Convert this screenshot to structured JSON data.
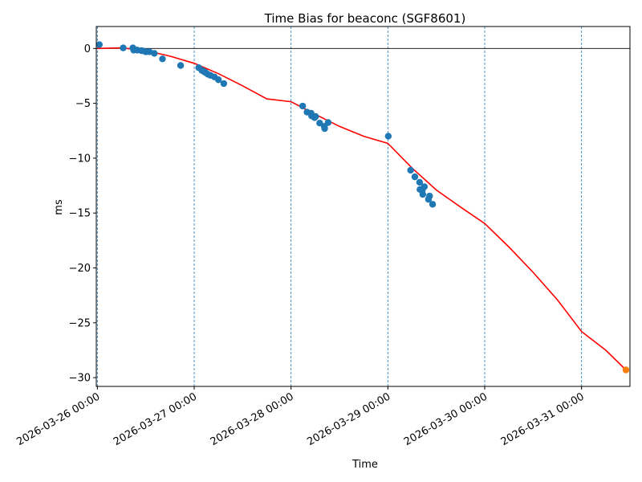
{
  "chart_data": {
    "type": "scatter",
    "title": "Time Bias for beaconc (SGF8601)",
    "xlabel": "Time",
    "ylabel": "ms",
    "x_is_datetime": true,
    "xlim": [
      "2026-03-25T23:44:00",
      "2026-03-31T12:00:00"
    ],
    "ylim": [
      -30.8,
      2.0
    ],
    "grid": false,
    "zero_line": true,
    "vertical_day_lines": true,
    "colors": {
      "points": "#1f77b4",
      "highlight": "#ff7f0e",
      "fit": "#ff0000",
      "day_lines": "#1f77b4",
      "zero_line": "#000000"
    },
    "x_ticks": [
      {
        "value": "2026-03-26T00:00:00",
        "label": "2026-03-26 00:00"
      },
      {
        "value": "2026-03-27T00:00:00",
        "label": "2026-03-27 00:00"
      },
      {
        "value": "2026-03-28T00:00:00",
        "label": "2026-03-28 00:00"
      },
      {
        "value": "2026-03-29T00:00:00",
        "label": "2026-03-29 00:00"
      },
      {
        "value": "2026-03-30T00:00:00",
        "label": "2026-03-30 00:00"
      },
      {
        "value": "2026-03-31T00:00:00",
        "label": "2026-03-31 00:00"
      }
    ],
    "y_ticks": [
      {
        "value": 0,
        "label": "0"
      },
      {
        "value": -5,
        "label": "−5"
      },
      {
        "value": -10,
        "label": "−10"
      },
      {
        "value": -15,
        "label": "−15"
      },
      {
        "value": -20,
        "label": "−20"
      },
      {
        "value": -25,
        "label": "−25"
      },
      {
        "value": -30,
        "label": "−30"
      }
    ],
    "series": [
      {
        "kind": "points",
        "color": "#1f77b4",
        "points": [
          {
            "x": "2026-03-26T00:29:00",
            "y": 0.35
          },
          {
            "x": "2026-03-26T06:24:00",
            "y": 0.05
          },
          {
            "x": "2026-03-26T08:48:00",
            "y": 0.05
          },
          {
            "x": "2026-03-26T09:00:00",
            "y": -0.15
          },
          {
            "x": "2026-03-26T09:53:00",
            "y": -0.15
          },
          {
            "x": "2026-03-26T10:53:00",
            "y": -0.2
          },
          {
            "x": "2026-03-26T11:05:00",
            "y": -0.2
          },
          {
            "x": "2026-03-26T11:56:00",
            "y": -0.3
          },
          {
            "x": "2026-03-26T12:05:00",
            "y": -0.3
          },
          {
            "x": "2026-03-26T12:54:00",
            "y": -0.3
          },
          {
            "x": "2026-03-26T14:07:00",
            "y": -0.45
          },
          {
            "x": "2026-03-26T16:08:00",
            "y": -0.95
          },
          {
            "x": "2026-03-26T20:38:00",
            "y": -1.55
          },
          {
            "x": "2026-03-27T01:07:00",
            "y": -1.75
          },
          {
            "x": "2026-03-27T01:53:00",
            "y": -2.0
          },
          {
            "x": "2026-03-27T02:24:00",
            "y": -2.1
          },
          {
            "x": "2026-03-27T02:49:00",
            "y": -2.2
          },
          {
            "x": "2026-03-27T03:24:00",
            "y": -2.35
          },
          {
            "x": "2026-03-27T04:02:00",
            "y": -2.45
          },
          {
            "x": "2026-03-27T05:02:00",
            "y": -2.6
          },
          {
            "x": "2026-03-27T06:00:00",
            "y": -2.85
          },
          {
            "x": "2026-03-27T07:20:00",
            "y": -3.2
          },
          {
            "x": "2026-03-28T02:53:00",
            "y": -5.25
          },
          {
            "x": "2026-03-28T03:58:00",
            "y": -5.8
          },
          {
            "x": "2026-03-28T04:58:00",
            "y": -5.9
          },
          {
            "x": "2026-03-28T05:06:00",
            "y": -6.15
          },
          {
            "x": "2026-03-28T05:50:00",
            "y": -6.3
          },
          {
            "x": "2026-03-28T06:05:00",
            "y": -6.2
          },
          {
            "x": "2026-03-28T07:06:00",
            "y": -6.8
          },
          {
            "x": "2026-03-28T08:15:00",
            "y": -7.1
          },
          {
            "x": "2026-03-28T08:20:00",
            "y": -7.3
          },
          {
            "x": "2026-03-28T09:12:00",
            "y": -6.75
          },
          {
            "x": "2026-03-29T00:06:00",
            "y": -8.0
          },
          {
            "x": "2026-03-29T05:38:00",
            "y": -11.1
          },
          {
            "x": "2026-03-29T06:41:00",
            "y": -11.7
          },
          {
            "x": "2026-03-29T07:52:00",
            "y": -12.2
          },
          {
            "x": "2026-03-29T07:57:00",
            "y": -12.85
          },
          {
            "x": "2026-03-29T08:32:00",
            "y": -12.95
          },
          {
            "x": "2026-03-29T08:39:00",
            "y": -13.3
          },
          {
            "x": "2026-03-29T09:03:00",
            "y": -12.6
          },
          {
            "x": "2026-03-29T10:03:00",
            "y": -13.75
          },
          {
            "x": "2026-03-29T10:20:00",
            "y": -13.45
          },
          {
            "x": "2026-03-29T11:05:00",
            "y": -14.2
          }
        ]
      },
      {
        "kind": "points",
        "color": "#ff7f0e",
        "points": [
          {
            "x": "2026-03-31T11:00:00",
            "y": -29.3
          }
        ]
      },
      {
        "kind": "fit_curve",
        "color": "#ff0000",
        "points": [
          {
            "x": "2026-03-26T00:00:00",
            "y": 0.0
          },
          {
            "x": "2026-03-26T06:00:00",
            "y": 0.05
          },
          {
            "x": "2026-03-26T12:00:00",
            "y": -0.2
          },
          {
            "x": "2026-03-26T18:00:00",
            "y": -0.7
          },
          {
            "x": "2026-03-27T00:00:00",
            "y": -1.35
          },
          {
            "x": "2026-03-27T06:00:00",
            "y": -2.3
          },
          {
            "x": "2026-03-27T12:00:00",
            "y": -3.4
          },
          {
            "x": "2026-03-27T18:00:00",
            "y": -4.6
          },
          {
            "x": "2026-03-28T00:00:00",
            "y": -4.85
          },
          {
            "x": "2026-03-28T06:00:00",
            "y": -6.0
          },
          {
            "x": "2026-03-28T12:00:00",
            "y": -7.1
          },
          {
            "x": "2026-03-28T18:00:00",
            "y": -8.0
          },
          {
            "x": "2026-03-29T00:00:00",
            "y": -8.65
          },
          {
            "x": "2026-03-29T06:00:00",
            "y": -10.9
          },
          {
            "x": "2026-03-29T12:00:00",
            "y": -12.9
          },
          {
            "x": "2026-03-29T18:00:00",
            "y": -14.45
          },
          {
            "x": "2026-03-30T00:00:00",
            "y": -15.95
          },
          {
            "x": "2026-03-30T06:00:00",
            "y": -18.1
          },
          {
            "x": "2026-03-30T12:00:00",
            "y": -20.4
          },
          {
            "x": "2026-03-30T18:00:00",
            "y": -22.9
          },
          {
            "x": "2026-03-31T00:00:00",
            "y": -25.8
          },
          {
            "x": "2026-03-31T06:00:00",
            "y": -27.5
          },
          {
            "x": "2026-03-31T11:00:00",
            "y": -29.3
          }
        ]
      }
    ]
  }
}
